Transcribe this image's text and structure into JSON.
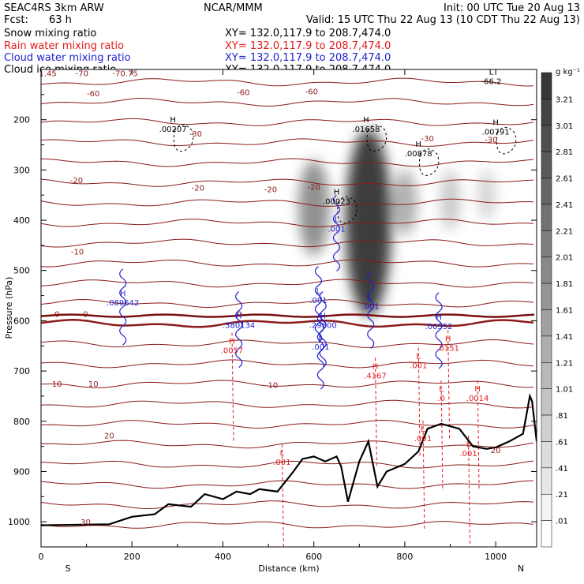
{
  "header": {
    "project_line": "SEAC4RS  3km ARW",
    "org": "NCAR/MMM",
    "init": "Init: 00 UTC Tue 20 Aug 13",
    "fcst_label": "Fcst:",
    "fcst_value": "63 h",
    "valid": "Valid: 15 UTC Thu 22 Aug 13 (10 CDT Thu 22 Aug 13)"
  },
  "legend": [
    {
      "label": "Snow mixing ratio",
      "xy": "",
      "color": "#000000"
    },
    {
      "label": "Rain water mixing ratio",
      "xy": "XY=  132.0,117.9 to 208.7,474.0",
      "color": "#e41a1c"
    },
    {
      "label": "Cloud water mixing ratio",
      "xy": "XY=  132.0,117.9 to 208.7,474.0",
      "color": "#1f1fd0"
    },
    {
      "label": "Cloud ice mixing ratio",
      "xy": "XY=  132.0,117.9 to 208.7,474.0",
      "color": "#000000"
    }
  ],
  "snow_xy": "XY=  132.0,117.9 to 208.7,474.0",
  "colorbar": {
    "units": "g kg⁻¹",
    "labels": [
      "3.21",
      "3.01",
      "2.81",
      "2.61",
      "2.41",
      "2.21",
      "2.01",
      "1.81",
      "1.61",
      "1.41",
      "1.21",
      "1.01",
      ".81",
      ".61",
      ".41",
      ".21",
      ".01"
    ]
  },
  "chart_data": {
    "type": "contour",
    "title": "",
    "xlabel": "Distance (km)",
    "ylabel": "Pressure (hPa)",
    "xlim": [
      0,
      1090
    ],
    "ylim": [
      1050,
      100
    ],
    "x_ticks": [
      0,
      200,
      400,
      600,
      800,
      1000
    ],
    "y_ticks": [
      200,
      300,
      400,
      500,
      600,
      700,
      800,
      900,
      1000
    ],
    "x_end_labels": {
      "left": "S",
      "right": "N"
    },
    "freezing_level_hpa": 590,
    "temperature_contours": {
      "color": "#8b1a1a",
      "labels": [
        {
          "text": "-70",
          "x": 90,
          "p": 107
        },
        {
          "text": "-70.75",
          "x": 185,
          "p": 107
        },
        {
          "text": "1.45",
          "x": 15,
          "p": 107
        },
        {
          "text": "-60",
          "x": 115,
          "p": 147
        },
        {
          "text": "-60",
          "x": 445,
          "p": 145
        },
        {
          "text": "-60",
          "x": 595,
          "p": 143
        },
        {
          "text": "-30",
          "x": 340,
          "p": 227
        },
        {
          "text": "-30",
          "x": 850,
          "p": 237
        },
        {
          "text": "-30",
          "x": 990,
          "p": 239
        },
        {
          "text": "-20",
          "x": 78,
          "p": 320
        },
        {
          "text": "-20",
          "x": 345,
          "p": 335
        },
        {
          "text": "-20",
          "x": 505,
          "p": 338
        },
        {
          "text": "-20",
          "x": 600,
          "p": 333
        },
        {
          "text": "-10",
          "x": 80,
          "p": 462
        },
        {
          "text": "0",
          "x": 35,
          "p": 586
        },
        {
          "text": "0",
          "x": 98,
          "p": 586
        },
        {
          "text": "0",
          "x": 437,
          "p": 586
        },
        {
          "text": "10",
          "x": 35,
          "p": 725
        },
        {
          "text": "10",
          "x": 115,
          "p": 725
        },
        {
          "text": "10",
          "x": 510,
          "p": 727
        },
        {
          "text": "20",
          "x": 150,
          "p": 828
        },
        {
          "text": "20",
          "x": 1000,
          "p": 857
        },
        {
          "text": "30",
          "x": 98,
          "p": 1000
        }
      ]
    },
    "series": [
      {
        "name": "Cloud ice mixing ratio",
        "extrema": [
          {
            "type": "H",
            "value": ".00207",
            "x": 290,
            "p": 215
          },
          {
            "type": "H",
            "value": ".01658",
            "x": 715,
            "p": 215
          },
          {
            "type": "H",
            "value": ".00791",
            "x": 1000,
            "p": 220
          },
          {
            "type": "H",
            "value": ".00878",
            "x": 830,
            "p": 263
          },
          {
            "type": "H",
            "value": ".00023",
            "x": 650,
            "p": 358
          },
          {
            "type": "L",
            "value": "-66.2",
            "x": 990,
            "p": 120
          }
        ]
      },
      {
        "name": "Cloud water mixing ratio",
        "extrema": [
          {
            "type": "H",
            "value": ".089642",
            "x": 180,
            "p": 560
          },
          {
            "type": "H",
            "value": ".380134",
            "x": 435,
            "p": 605
          },
          {
            "type": "H",
            "value": ".29800",
            "x": 620,
            "p": 605
          },
          {
            "type": "H",
            "value": ".00552",
            "x": 875,
            "p": 607
          },
          {
            "type": "L",
            "value": ".001",
            "x": 650,
            "p": 413
          },
          {
            "type": "L",
            "value": ".001",
            "x": 610,
            "p": 555
          },
          {
            "type": "L",
            "value": ".001",
            "x": 725,
            "p": 567
          },
          {
            "type": "L",
            "value": ".001",
            "x": 615,
            "p": 648
          }
        ]
      },
      {
        "name": "Rain water mixing ratio",
        "extrema": [
          {
            "type": "H",
            "value": ".0057",
            "x": 420,
            "p": 655
          },
          {
            "type": "H",
            "value": ".4167",
            "x": 735,
            "p": 705
          },
          {
            "type": "H",
            "value": ".0151",
            "x": 895,
            "p": 650
          },
          {
            "type": "L",
            "value": ".0",
            "x": 880,
            "p": 750
          },
          {
            "type": "H",
            "value": ".0014",
            "x": 960,
            "p": 750
          },
          {
            "type": "L",
            "value": ".001",
            "x": 830,
            "p": 685
          },
          {
            "type": "L",
            "value": ".001",
            "x": 840,
            "p": 830
          },
          {
            "type": "L",
            "value": ".001",
            "x": 940,
            "p": 860
          },
          {
            "type": "L",
            "value": ".001",
            "x": 530,
            "p": 877
          }
        ]
      },
      {
        "name": "Snow mixing ratio",
        "shaded_maxima": [
          {
            "x": 600,
            "p_top": 280,
            "p_bottom": 470,
            "max": 1.6
          },
          {
            "x": 720,
            "p_top": 220,
            "p_bottom": 590,
            "max": 3.2
          },
          {
            "x": 800,
            "p_top": 300,
            "p_bottom": 430,
            "max": 1.0
          },
          {
            "x": 900,
            "p_top": 300,
            "p_bottom": 420,
            "max": 0.5
          },
          {
            "x": 980,
            "p_top": 300,
            "p_bottom": 400,
            "max": 0.3
          }
        ]
      }
    ],
    "terrain_pressure": [
      [
        0,
        1007
      ],
      [
        150,
        1005
      ],
      [
        200,
        990
      ],
      [
        250,
        985
      ],
      [
        280,
        965
      ],
      [
        330,
        970
      ],
      [
        360,
        945
      ],
      [
        400,
        955
      ],
      [
        430,
        940
      ],
      [
        460,
        945
      ],
      [
        480,
        935
      ],
      [
        520,
        940
      ],
      [
        555,
        900
      ],
      [
        575,
        875
      ],
      [
        600,
        870
      ],
      [
        625,
        880
      ],
      [
        650,
        870
      ],
      [
        660,
        890
      ],
      [
        675,
        960
      ],
      [
        700,
        880
      ],
      [
        720,
        840
      ],
      [
        740,
        930
      ],
      [
        760,
        900
      ],
      [
        800,
        885
      ],
      [
        830,
        860
      ],
      [
        850,
        815
      ],
      [
        880,
        805
      ],
      [
        920,
        815
      ],
      [
        950,
        850
      ],
      [
        980,
        855
      ],
      [
        1000,
        852
      ],
      [
        1030,
        840
      ],
      [
        1060,
        825
      ],
      [
        1075,
        750
      ],
      [
        1080,
        760
      ],
      [
        1090,
        840
      ]
    ]
  }
}
